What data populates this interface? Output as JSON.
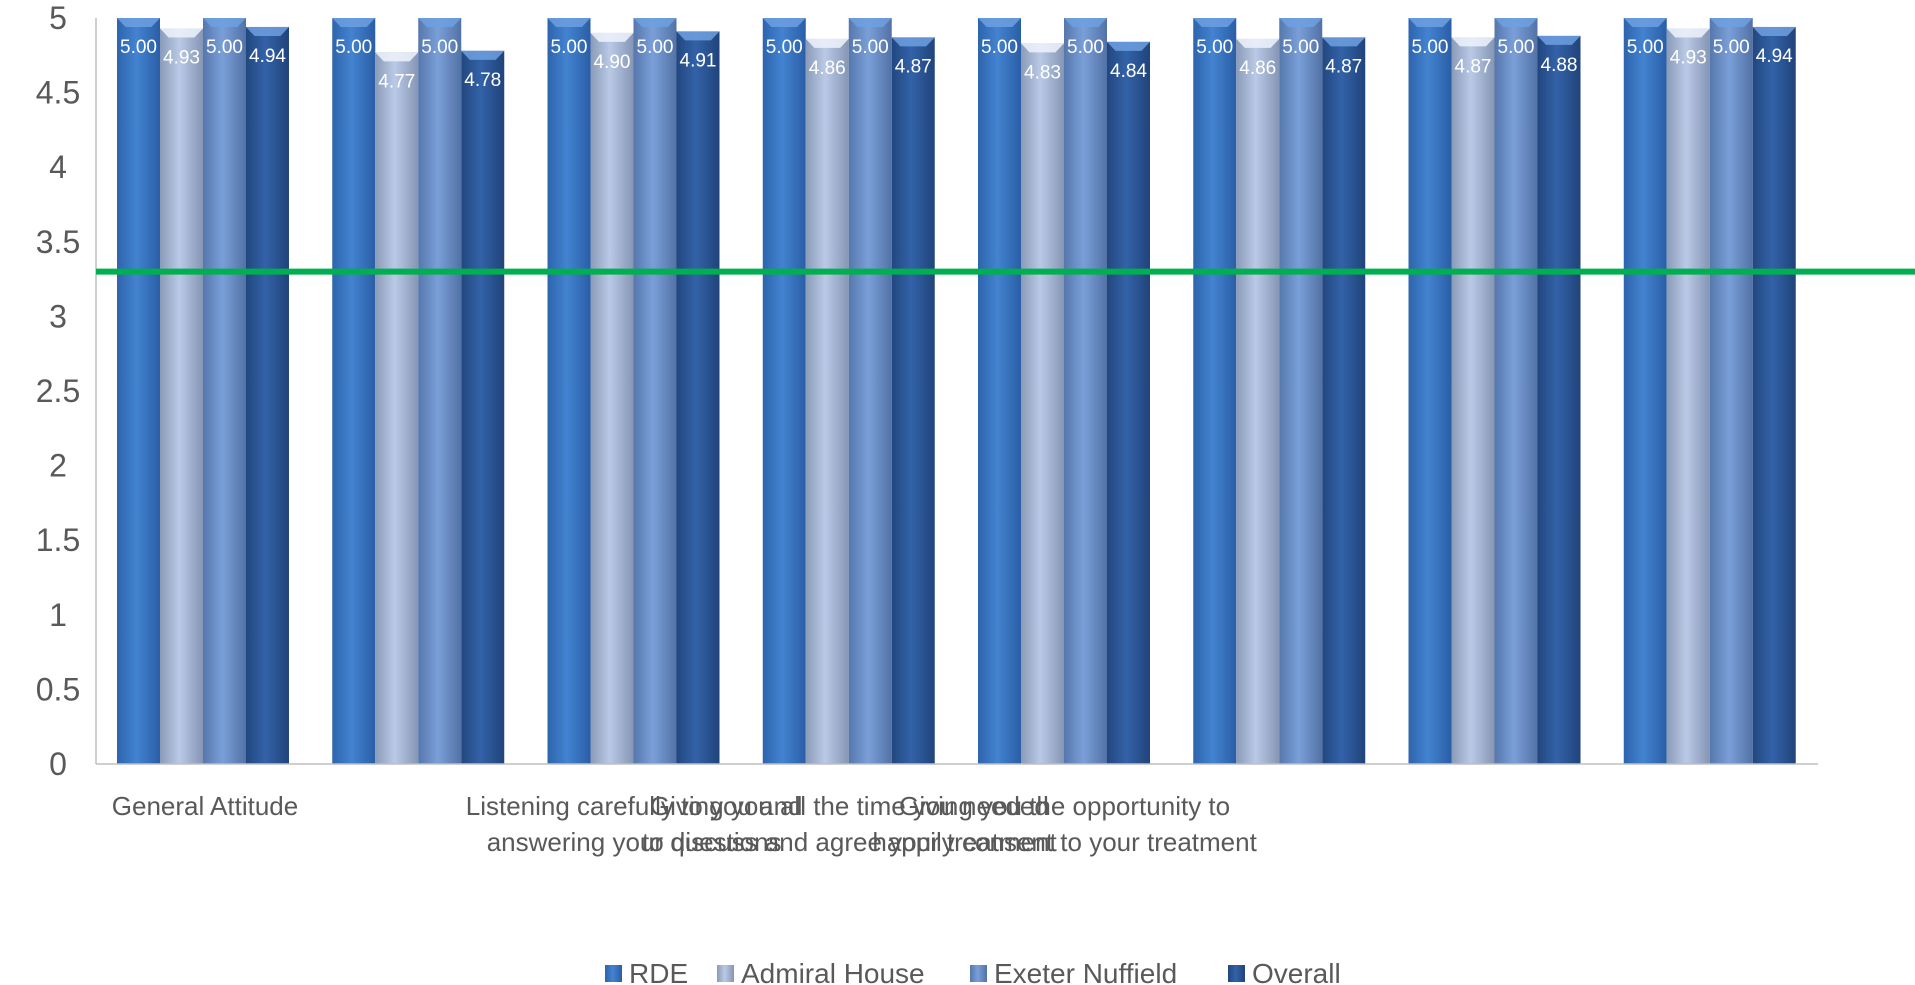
{
  "chart_data": {
    "type": "bar",
    "categories": [
      [
        "General Attitude"
      ],
      [],
      [
        "Listening carefully to you and",
        "answering your questions"
      ],
      [
        "Giving you all the time you needed",
        "to discuss and agree your treatment"
      ],
      [
        "Giving you the opportunity to",
        "happily consent to your treatment"
      ],
      [],
      [],
      []
    ],
    "series": [
      {
        "name": "RDE",
        "color": "#3d78c4",
        "values": [
          5.0,
          5.0,
          5.0,
          5.0,
          5.0,
          5.0,
          5.0,
          5.0
        ]
      },
      {
        "name": "Admiral House",
        "color": "#b4c6e6",
        "values": [
          4.93,
          4.77,
          4.9,
          4.86,
          4.83,
          4.86,
          4.87,
          4.93
        ]
      },
      {
        "name": "Exeter Nuffield",
        "color": "#7197d2",
        "values": [
          5.0,
          5.0,
          5.0,
          5.0,
          5.0,
          5.0,
          5.0,
          5.0
        ]
      },
      {
        "name": "Overall",
        "color": "#2e5a9c",
        "values": [
          4.94,
          4.78,
          4.91,
          4.87,
          4.84,
          4.87,
          4.88,
          4.94
        ]
      }
    ],
    "data_labels": [
      [
        "5.00",
        "5.00",
        "5.00",
        "5.00",
        "5.00",
        "5.00",
        "5.00",
        "5.00"
      ],
      [
        "4.93",
        "4.77",
        "4.90",
        "4.86",
        "4.83",
        "4.86",
        "4.87",
        "4.93"
      ],
      [
        "5.00",
        "5.00",
        "5.00",
        "5.00",
        "5.00",
        "5.00",
        "5.00",
        "5.00"
      ],
      [
        "4.94",
        "4.78",
        "4.91",
        "4.87",
        "4.84",
        "4.87",
        "4.88",
        "4.94"
      ]
    ],
    "y_ticks": [
      "0",
      "0.5",
      "1",
      "1.5",
      "2",
      "2.5",
      "3",
      "3.5",
      "4",
      "4.5",
      "5"
    ],
    "ylim": [
      0,
      5
    ],
    "reference_line": {
      "value": 3.3,
      "color": "#00b050"
    },
    "grid": false,
    "legend_position": "bottom"
  }
}
